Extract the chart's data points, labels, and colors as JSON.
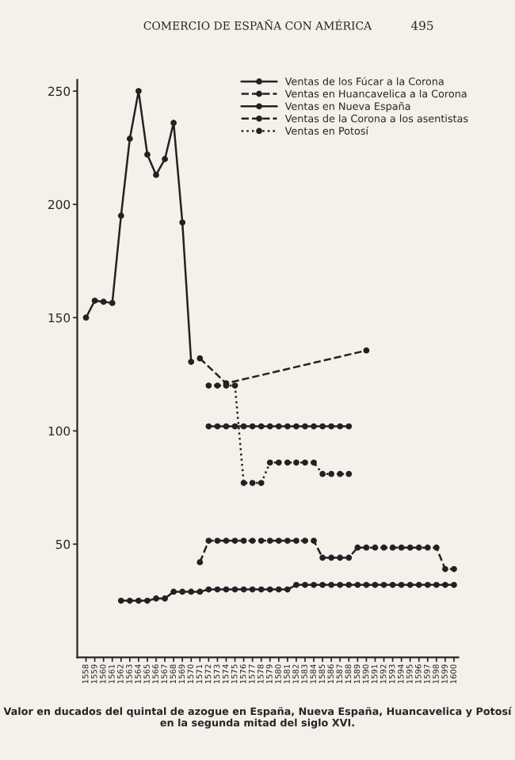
{
  "chart_data": {
    "type": "line",
    "title": "COMERCIO DE ESPAÑA CON AMÉRICA",
    "annotations": [
      "495",
      "Valor en ducados del quintal de azogue en España, Nueva España, Huancavelica y Potosí en la segunda mitad del siglo XVI."
    ],
    "xlim": [
      1557,
      1600.5
    ],
    "xticks": [
      1558,
      1559,
      1560,
      1561,
      1562,
      1563,
      1564,
      1565,
      1566,
      1567,
      1568,
      1569,
      1570,
      1571,
      1572,
      1573,
      1574,
      1575,
      1576,
      1577,
      1578,
      1579,
      1580,
      1581,
      1582,
      1583,
      1584,
      1585,
      1586,
      1587,
      1588,
      1589,
      1590,
      1591,
      1592,
      1593,
      1594,
      1595,
      1596,
      1597,
      1598,
      1599,
      1600
    ],
    "ylim": [
      0,
      255
    ],
    "yticks": [
      50,
      100,
      150,
      200,
      250
    ],
    "grid": false,
    "legend": "top right",
    "marker": "circle",
    "series": [
      {
        "name": "Ventas de los Fúcar a la Corona",
        "color": "#222222",
        "line_style": "solid",
        "x": [
          1558,
          1559,
          1560,
          1561,
          1562,
          1563,
          1564,
          1565,
          1566,
          1567,
          1568,
          1569,
          1570
        ],
        "values": [
          150,
          157.5,
          157,
          156.5,
          195,
          229,
          250,
          222,
          213,
          220,
          236,
          192,
          130.5
        ]
      },
      {
        "name": "Ventas en Huancavelica a la Corona",
        "color": "#222222",
        "line_style": "dashed",
        "x": [
          1571,
          1572,
          1573,
          1574,
          1575,
          1576,
          1577,
          1578,
          1579,
          1580,
          1581,
          1582,
          1583,
          1584,
          1585,
          1586,
          1587,
          1588,
          1589,
          1590,
          1591,
          1592,
          1593,
          1594,
          1595,
          1596,
          1597,
          1598,
          1599,
          1600
        ],
        "values": [
          42,
          51.5,
          51.5,
          51.5,
          51.5,
          51.5,
          51.5,
          51.5,
          51.5,
          51.5,
          51.5,
          51.5,
          51.5,
          51.5,
          44,
          44,
          44,
          44,
          48.5,
          48.5,
          48.5,
          48.5,
          48.5,
          48.5,
          48.5,
          48.5,
          48.5,
          48.5,
          39,
          39
        ]
      },
      {
        "name": "Ventas en Nueva España",
        "color": "#222222",
        "line_style": "solid",
        "x": [
          1562,
          1563,
          1564,
          1565,
          1566,
          1567,
          1568,
          1569,
          1570,
          1571,
          1572,
          1573,
          1574,
          1575,
          1576,
          1577,
          1578,
          1579,
          1580,
          1581,
          1582,
          1583,
          1584,
          1585,
          1586,
          1587,
          1588,
          1589,
          1590,
          1591,
          1592,
          1593,
          1594,
          1595,
          1596,
          1597,
          1598,
          1599,
          1600
        ],
        "values": [
          25,
          25,
          25,
          25,
          26,
          26,
          29,
          29,
          29,
          29,
          30,
          30,
          30,
          30,
          30,
          30,
          30,
          30,
          30,
          30,
          32,
          32,
          32,
          32,
          32,
          32,
          32,
          32,
          32,
          32,
          32,
          32,
          32,
          32,
          32,
          32,
          32,
          32,
          32
        ]
      },
      {
        "name": "Ventas de la Corona a los asentistas",
        "color": "#222222",
        "line_style": "dashed",
        "x": [
          1571,
          1574,
          1590
        ],
        "values": [
          132,
          121,
          135.5
        ]
      },
      {
        "name": "Ventas en Potosí",
        "color": "#222222",
        "line_style": "dotted",
        "x": [
          1572,
          1573,
          1574,
          1575,
          1576,
          1577,
          1578,
          1579,
          1580,
          1581,
          1582,
          1583,
          1584,
          1585,
          1586,
          1587,
          1588
        ],
        "values": [
          120,
          120,
          120,
          120,
          77,
          77,
          77,
          86,
          86,
          86,
          86,
          86,
          86,
          81,
          81,
          81,
          81
        ]
      },
      {
        "color": "#222222",
        "line_style": "solid",
        "x": [
          1572,
          1573,
          1574,
          1575,
          1576,
          1577,
          1578,
          1579,
          1580,
          1581,
          1582,
          1583,
          1584,
          1585,
          1586,
          1587,
          1588
        ],
        "values": [
          102,
          102,
          102,
          102,
          102,
          102,
          102,
          102,
          102,
          102,
          102,
          102,
          102,
          102,
          102,
          102,
          102
        ]
      }
    ]
  }
}
